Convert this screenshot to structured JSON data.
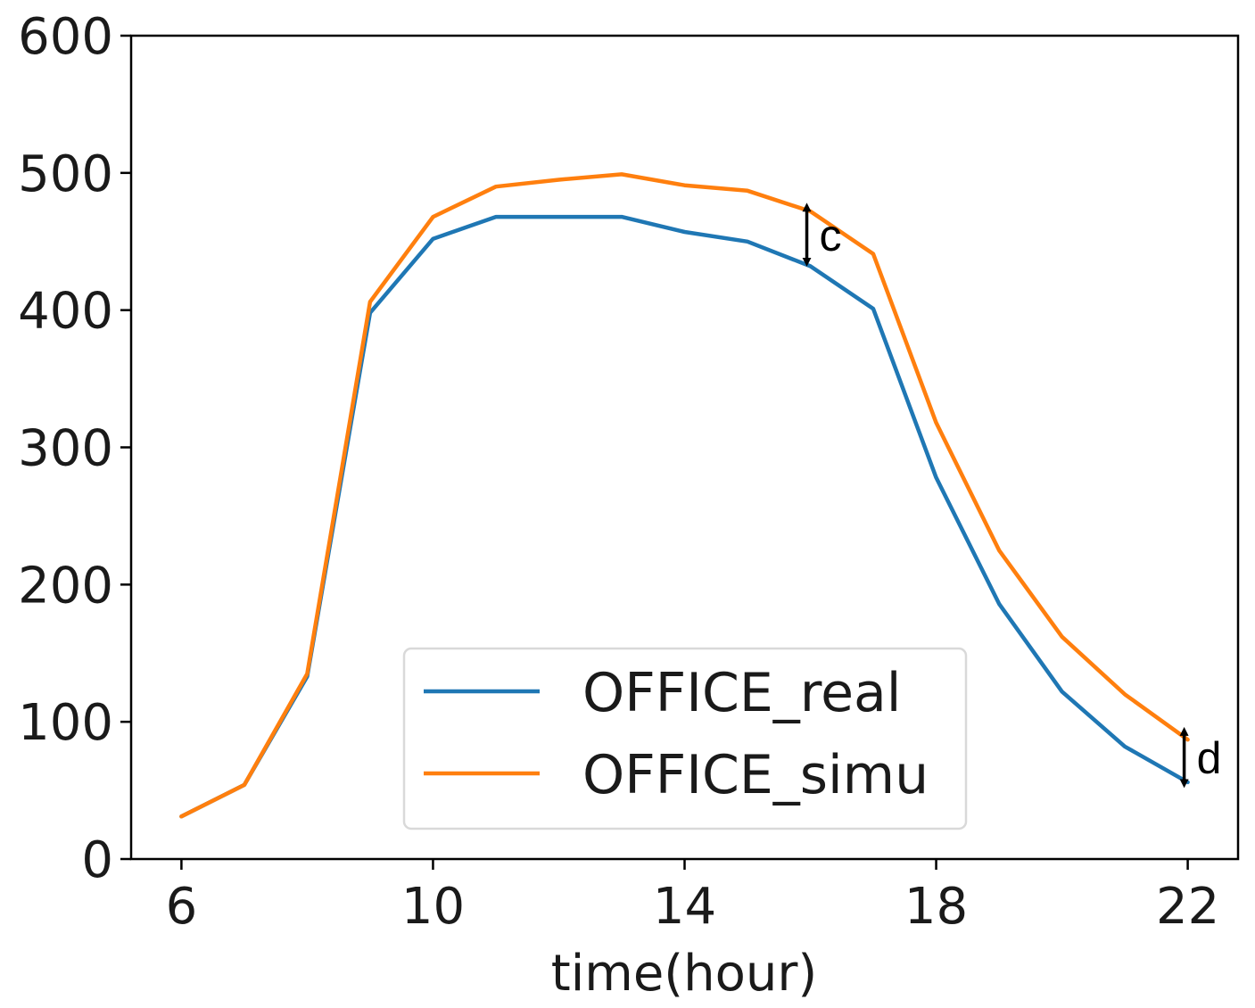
{
  "chart_data": {
    "type": "line",
    "title": "",
    "xlabel": "time(hour)",
    "ylabel": "",
    "xlim": [
      5.2,
      22.8
    ],
    "ylim": [
      0,
      600
    ],
    "xticks": [
      6,
      10,
      14,
      18,
      22
    ],
    "yticks": [
      0,
      100,
      200,
      300,
      400,
      500,
      600
    ],
    "grid": false,
    "legend_position": "bottom-center",
    "x": [
      6,
      7,
      8,
      9,
      10,
      11,
      12,
      13,
      14,
      15,
      16,
      17,
      18,
      19,
      20,
      21,
      22
    ],
    "series": [
      {
        "name": "OFFICE_real",
        "color": "#1f77b4",
        "values": [
          31,
          54,
          133,
          398,
          452,
          468,
          468,
          468,
          457,
          450,
          432,
          401,
          278,
          186,
          122,
          82,
          56
        ]
      },
      {
        "name": "OFFICE_simu",
        "color": "#ff7f0e",
        "values": [
          31,
          54,
          135,
          406,
          468,
          490,
          495,
          499,
          491,
          487,
          472,
          441,
          318,
          225,
          162,
          120,
          87
        ]
      }
    ],
    "annotations": [
      {
        "text": "c",
        "x": 16,
        "y_from": 435,
        "y_to": 475
      },
      {
        "text": "d",
        "x": 22,
        "y_from": 55,
        "y_to": 93
      }
    ]
  }
}
